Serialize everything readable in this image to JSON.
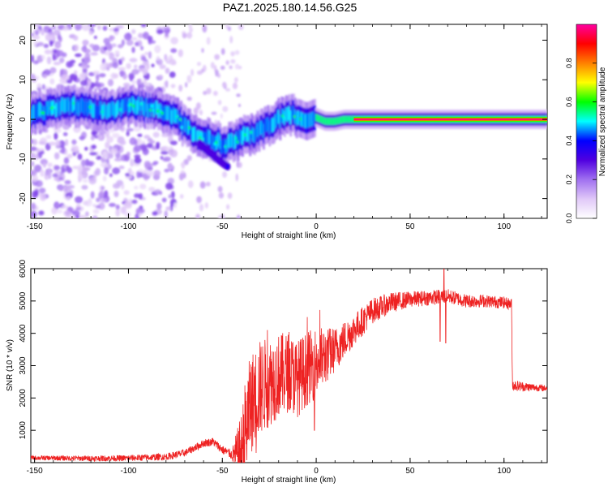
{
  "title": "PAZ1.2025.180.14.56.G25",
  "chart_data": [
    {
      "type": "heatmap",
      "title": "PAZ1.2025.180.14.56.G25",
      "xlabel": "Height of straight line (km)",
      "ylabel": "Frequency (Hz)",
      "xlim": [
        -152,
        123
      ],
      "ylim": [
        -25,
        24
      ],
      "xticks": [
        -150,
        -100,
        -50,
        0,
        50,
        100
      ],
      "yticks": [
        -20,
        -10,
        0,
        10,
        20
      ],
      "ridge": {
        "x": [
          -150,
          -140,
          -130,
          -120,
          -110,
          -100,
          -90,
          -80,
          -75,
          -70,
          -65,
          -60,
          -55,
          -50,
          -45,
          -40,
          -35,
          -30,
          -25,
          -20,
          -15,
          -10,
          -5,
          0,
          5,
          10,
          15,
          20,
          30,
          40,
          50,
          60,
          70,
          80,
          90,
          100,
          110,
          123
        ],
        "y": [
          1.5,
          3,
          3.5,
          2.5,
          2,
          3.5,
          3,
          2,
          1,
          -2,
          -3.5,
          -4.5,
          -5,
          -6.5,
          -6,
          -4.5,
          -4,
          -3,
          -1.5,
          0,
          1.5,
          0.5,
          -0.5,
          0.5,
          -0.5,
          -0.5,
          0,
          0,
          0,
          0,
          0,
          0,
          0,
          0,
          0,
          0,
          0,
          0
        ]
      },
      "branch": {
        "x": [
          -62,
          -58,
          -54,
          -50,
          -47
        ],
        "y": [
          -6,
          -8,
          -9.5,
          -11,
          -12
        ]
      },
      "colorbar": {
        "label": "Normalized spectral amplitude",
        "range": [
          0.0,
          1.0
        ],
        "ticks": [
          "0.0",
          "0.2",
          "0.4",
          "0.6",
          "0.8"
        ],
        "ticks_values": [
          0.0,
          0.2,
          0.4,
          0.6,
          0.8
        ],
        "colors": [
          "#ffffff",
          "#e0c8f8",
          "#a070f0",
          "#5000e0",
          "#0000ff",
          "#00ffff",
          "#00ff00",
          "#ffff00",
          "#ff8000",
          "#ff0000",
          "#ff00a0"
        ]
      }
    },
    {
      "type": "line",
      "xlabel": "Height of straight line (km)",
      "ylabel": "SNR (10 * v/v)",
      "xlim": [
        -152,
        123
      ],
      "ylim": [
        0,
        6000
      ],
      "xticks": [
        -150,
        -100,
        -50,
        0,
        50,
        100
      ],
      "yticks": [
        1000,
        2000,
        3000,
        4000,
        5000,
        6000
      ],
      "line_color": "#ee2222",
      "envelope": {
        "x": [
          -152,
          -120,
          -100,
          -80,
          -70,
          -60,
          -55,
          -50,
          -45,
          -40,
          -38,
          -35,
          -30,
          -25,
          -20,
          -15,
          -10,
          -5,
          0,
          5,
          10,
          15,
          20,
          25,
          30,
          40,
          50,
          60,
          70,
          80,
          90,
          100,
          104,
          104.5,
          110,
          123
        ],
        "y": [
          150,
          130,
          140,
          180,
          300,
          600,
          650,
          400,
          250,
          300,
          900,
          1800,
          2300,
          2500,
          2700,
          2800,
          2600,
          2900,
          3100,
          3300,
          3500,
          3800,
          4100,
          4400,
          4700,
          4950,
          5050,
          5100,
          5150,
          5000,
          5000,
          4950,
          4900,
          2400,
          2350,
          2300
        ]
      },
      "noise_amplitude": {
        "x": [
          -152,
          -60,
          -45,
          -38,
          -30,
          -20,
          -10,
          0,
          10,
          20,
          35,
          50,
          104,
          123
        ],
        "y": [
          70,
          120,
          150,
          1600,
          1500,
          1300,
          1200,
          1100,
          700,
          500,
          350,
          250,
          180,
          90
        ]
      },
      "spikes": [
        {
          "x": -26,
          "y": 4100
        },
        {
          "x": -32,
          "y": 300
        },
        {
          "x": -1,
          "y": 1000
        },
        {
          "x": 68,
          "y": 6050
        },
        {
          "x": 69,
          "y": 3700
        },
        {
          "x": 66,
          "y": 3750
        }
      ]
    }
  ]
}
